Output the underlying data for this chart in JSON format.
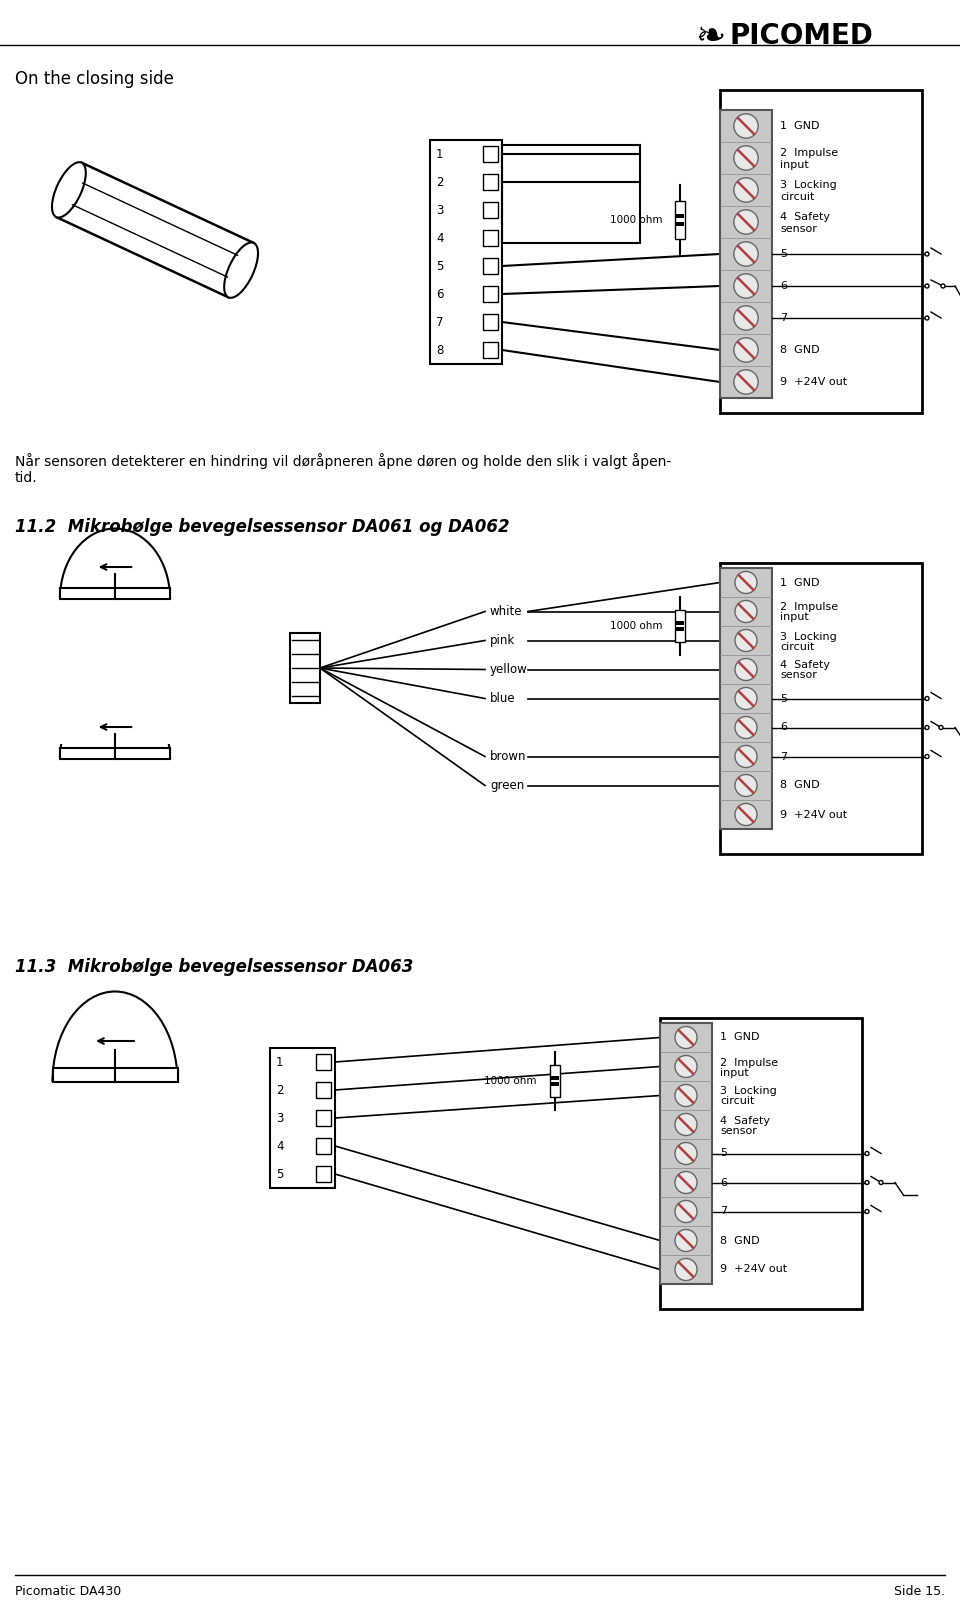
{
  "background_color": "#ffffff",
  "page_title_left": "Picomatic DA430",
  "page_title_right": "Side 15.",
  "section1_title": "On the closing side",
  "section2_title": "11.2  Mikrobølge bevegelsessensor DA061 og DA062",
  "section3_title": "11.3  Mikrobølge bevegelsessensor DA063",
  "paragraph_text": "Når sensoren detekterer en hindring vil døråpneren åpne døren og holde den slik i valgt åpen-\ntid.",
  "wire_colors_section2": [
    "white",
    "pink",
    "yellow",
    "blue",
    "brown",
    "green"
  ],
  "resistor_label": "1000 ohm",
  "terminal_labels_1": [
    "1  GND",
    "2  Impulse\n   input",
    "3  Locking\n   circuit",
    "4  Safety\n   sensor",
    "5",
    "6",
    "7",
    "8  GND",
    "9  +24V out"
  ],
  "connector_labels_s1": [
    "1",
    "2",
    "3",
    "4",
    "5",
    "6",
    "7",
    "8"
  ],
  "connector_labels_s3": [
    "1",
    "2",
    "3",
    "4",
    "5"
  ],
  "logo_text": "PICOMED"
}
